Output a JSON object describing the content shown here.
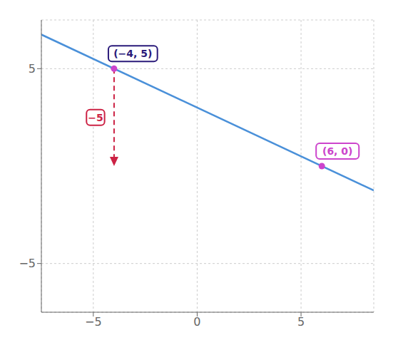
{
  "chart_data": {
    "type": "line",
    "xlim": [
      -7.5,
      8.5
    ],
    "ylim": [
      -7.5,
      7.5
    ],
    "xticks": [
      {
        "value": -5,
        "label": "−5"
      },
      0,
      5
    ],
    "yticks": [
      {
        "value": -5,
        "label": "−5"
      },
      5
    ],
    "grid": true,
    "series": [
      {
        "type": "line",
        "color": "#4a90d9",
        "x": [
          -7.5,
          8.5
        ],
        "values": [
          6.75,
          -1.25
        ]
      },
      {
        "type": "scatter",
        "color": "#cc44cc",
        "x": [
          -4,
          6
        ],
        "values": [
          5,
          0
        ]
      }
    ],
    "annotations": [
      {
        "text": "(−4, 5)",
        "x": -4,
        "y": 5,
        "color": "#2a1a7a"
      },
      {
        "text": "(6, 0)",
        "x": 6,
        "y": 0,
        "color": "#cc44cc"
      },
      {
        "text": "−5",
        "type": "arrow",
        "x": -4,
        "y": 5,
        "x_end": -4,
        "y_end": 0,
        "color": "#cc2244"
      }
    ]
  }
}
